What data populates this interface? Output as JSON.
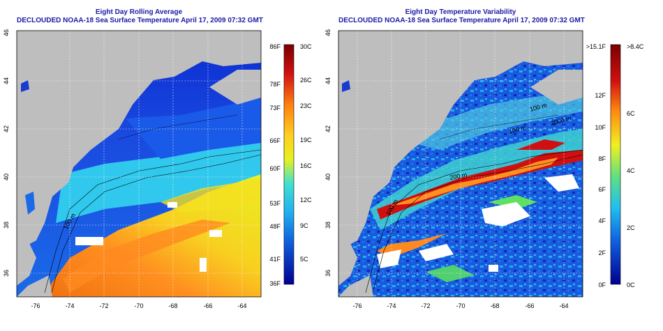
{
  "left": {
    "title1": "Eight Day Rolling Average",
    "title2": "DECLOUDED NOAA-18 Sea Surface Temperature April 17, 2009 07:32 GMT",
    "colorbar_f": [
      "86F",
      "78F",
      "73F",
      "66F",
      "60F",
      "53F",
      "48F",
      "41F",
      "36F"
    ],
    "colorbar_c": [
      "30C",
      "26C",
      "23C",
      "19C",
      "16C",
      "12C",
      "9C",
      "5C"
    ],
    "contour_label": "100 m"
  },
  "right": {
    "title1": "Eight Day Temperature Variability",
    "title2": "DECLOUDED NOAA-18 Sea Surface Temperature April 17, 2009 07:32 GMT",
    "colorbar_f": [
      ">15.1F",
      "12F",
      "10F",
      "8F",
      "6F",
      "4F",
      "2F",
      "0F"
    ],
    "colorbar_c": [
      ">8.4C",
      "6C",
      "4C",
      "2C",
      "0C"
    ],
    "contour_labels": [
      "100 m",
      "100 m",
      "2000 m",
      "200 m",
      "100 m"
    ]
  },
  "axes": {
    "lon_ticks": [
      "-76",
      "-74",
      "-72",
      "-70",
      "-68",
      "-66",
      "-64"
    ],
    "lat_ticks": [
      "46",
      "44",
      "42",
      "40",
      "38",
      "36"
    ]
  },
  "colors": {
    "title": "#1a1aa6",
    "land": "#bebebe"
  }
}
